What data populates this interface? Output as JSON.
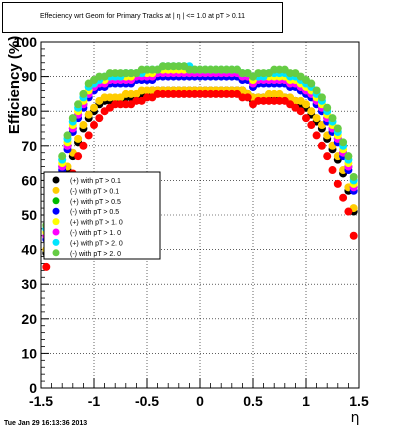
{
  "chart_data": {
    "type": "scatter",
    "title": "Effeciency wrt Geom for Primary Tracks at | η | <= 1.0 at pT > 0.11",
    "xlabel": "η",
    "ylabel": "Efficiency (%)",
    "xlim": [
      -1.5,
      1.5
    ],
    "ylim": [
      0,
      100
    ],
    "x_ticks": [
      "-1.5",
      "-1",
      "-0.5",
      "0",
      "0.5",
      "1",
      "1.5"
    ],
    "y_ticks": [
      "0",
      "10",
      "20",
      "30",
      "40",
      "50",
      "60",
      "70",
      "80",
      "90",
      "100"
    ],
    "grid": true,
    "legend_position": "left-middle",
    "x": [
      -1.45,
      -1.4,
      -1.35,
      -1.3,
      -1.25,
      -1.2,
      -1.15,
      -1.1,
      -1.05,
      -1.0,
      -0.95,
      -0.9,
      -0.85,
      -0.8,
      -0.75,
      -0.7,
      -0.65,
      -0.6,
      -0.55,
      -0.5,
      -0.45,
      -0.4,
      -0.35,
      -0.3,
      -0.25,
      -0.2,
      -0.15,
      -0.1,
      -0.05,
      0.0,
      0.05,
      0.1,
      0.15,
      0.2,
      0.25,
      0.3,
      0.35,
      0.4,
      0.45,
      0.5,
      0.55,
      0.6,
      0.65,
      0.7,
      0.75,
      0.8,
      0.85,
      0.9,
      0.95,
      1.0,
      1.05,
      1.1,
      1.15,
      1.2,
      1.25,
      1.3,
      1.35,
      1.4,
      1.45
    ],
    "series": [
      {
        "name": "(+) with pT > 0.1",
        "color": "#000000",
        "values": [
          39,
          48,
          54,
          59,
          63,
          67,
          71,
          75,
          78,
          80,
          82,
          83,
          83,
          83,
          83,
          84,
          84,
          84,
          85,
          85,
          86,
          86,
          86,
          86,
          86,
          86,
          86,
          86,
          86,
          86,
          86,
          86,
          86,
          86,
          86,
          86,
          86,
          86,
          85,
          83,
          84,
          84,
          84,
          84,
          84,
          84,
          83,
          83,
          82,
          81,
          79,
          77,
          75,
          72,
          69,
          66,
          62,
          57,
          51
        ]
      },
      {
        "name": "(-) with pT > 0.1",
        "color": "#ffcc00",
        "values": [
          40,
          49,
          55,
          60,
          64,
          68,
          72,
          76,
          79,
          81,
          83,
          84,
          84,
          84,
          84,
          85,
          85,
          85,
          86,
          86,
          86,
          86,
          86,
          86,
          86,
          86,
          86,
          86,
          86,
          86,
          86,
          86,
          86,
          86,
          86,
          86,
          86,
          86,
          85,
          84,
          84,
          84,
          85,
          85,
          85,
          84,
          84,
          83,
          83,
          82,
          80,
          78,
          76,
          73,
          70,
          67,
          63,
          58,
          52
        ]
      },
      {
        "name": "(+) with pT > 0.5",
        "color": "#00bb00",
        "values": [
          44,
          52,
          58,
          64,
          70,
          75,
          79,
          82,
          85,
          87,
          88,
          88,
          89,
          89,
          89,
          89,
          89,
          90,
          90,
          90,
          90,
          91,
          91,
          91,
          91,
          91,
          91,
          91,
          91,
          91,
          91,
          91,
          91,
          91,
          91,
          91,
          91,
          90,
          90,
          88,
          89,
          89,
          89,
          89,
          89,
          89,
          88,
          88,
          87,
          86,
          85,
          83,
          81,
          78,
          75,
          72,
          68,
          64,
          58
        ]
      },
      {
        "name": "(-) with pT > 0.5",
        "color": "#0000ff",
        "values": [
          43,
          51,
          57,
          63,
          69,
          74,
          78,
          81,
          84,
          86,
          87,
          87,
          88,
          88,
          88,
          88,
          88,
          89,
          89,
          89,
          89,
          90,
          90,
          90,
          90,
          90,
          90,
          90,
          90,
          90,
          90,
          90,
          90,
          90,
          90,
          90,
          90,
          89,
          89,
          87,
          88,
          88,
          88,
          88,
          88,
          88,
          87,
          87,
          86,
          85,
          84,
          82,
          80,
          77,
          74,
          71,
          67,
          63,
          57
        ]
      },
      {
        "name": "(+) with pT > 1. 0",
        "color": "#ffff00",
        "values": [
          45,
          53,
          59,
          65,
          71,
          76,
          80,
          83,
          86,
          88,
          89,
          89,
          90,
          90,
          90,
          90,
          90,
          91,
          91,
          91,
          91,
          92,
          92,
          92,
          92,
          92,
          92,
          92,
          92,
          92,
          92,
          92,
          92,
          92,
          92,
          92,
          92,
          91,
          91,
          89,
          90,
          90,
          90,
          90,
          90,
          90,
          89,
          89,
          88,
          87,
          86,
          84,
          82,
          79,
          76,
          73,
          69,
          65,
          59
        ]
      },
      {
        "name": "(-) with pT > 1. 0",
        "color": "#ff00ff",
        "values": [
          44,
          52,
          58,
          64,
          70,
          75,
          79,
          82,
          85,
          87,
          88,
          88,
          89,
          89,
          89,
          89,
          89,
          90,
          90,
          90,
          90,
          91,
          91,
          91,
          91,
          91,
          91,
          91,
          91,
          91,
          91,
          91,
          91,
          91,
          91,
          91,
          91,
          90,
          90,
          88,
          89,
          89,
          89,
          89,
          89,
          89,
          88,
          88,
          87,
          86,
          85,
          83,
          81,
          78,
          75,
          72,
          68,
          64,
          58
        ]
      },
      {
        "name": "(+) with pT > 2. 0",
        "color": "#00e5ff",
        "values": [
          46,
          54,
          60,
          66,
          72,
          77,
          81,
          84,
          87,
          88,
          89,
          90,
          90,
          90,
          90,
          91,
          91,
          91,
          91,
          92,
          92,
          92,
          93,
          93,
          93,
          93,
          93,
          93,
          92,
          92,
          92,
          92,
          92,
          92,
          92,
          92,
          92,
          91,
          91,
          90,
          90,
          90,
          91,
          91,
          91,
          91,
          90,
          90,
          89,
          88,
          87,
          85,
          83,
          80,
          77,
          74,
          70,
          66,
          60
        ]
      },
      {
        "name": "(-) with pT > 2. 0",
        "color": "#66cc44",
        "values": [
          47,
          55,
          61,
          67,
          73,
          78,
          82,
          85,
          88,
          89,
          90,
          90,
          91,
          91,
          91,
          91,
          91,
          91,
          92,
          92,
          92,
          92,
          93,
          93,
          93,
          93,
          93,
          92,
          92,
          92,
          92,
          92,
          92,
          92,
          92,
          92,
          92,
          91,
          91,
          90,
          91,
          91,
          91,
          92,
          92,
          92,
          91,
          91,
          90,
          89,
          88,
          86,
          84,
          81,
          78,
          75,
          71,
          67,
          61
        ]
      },
      {
        "name": "",
        "color": "#ff0000",
        "values": [
          35,
          42,
          47,
          52,
          57,
          62,
          67,
          70,
          73,
          76,
          78,
          80,
          81,
          82,
          82,
          82,
          82,
          83,
          83,
          84,
          84,
          85,
          85,
          85,
          85,
          85,
          85,
          85,
          85,
          85,
          85,
          85,
          85,
          85,
          85,
          85,
          85,
          84,
          84,
          82,
          83,
          83,
          83,
          83,
          83,
          83,
          82,
          81,
          80,
          78,
          76,
          73,
          70,
          67,
          63,
          59,
          55,
          51,
          44
        ]
      }
    ]
  },
  "footer": {
    "timestamp": "Tue Jan 29 16:13:36 2013"
  }
}
